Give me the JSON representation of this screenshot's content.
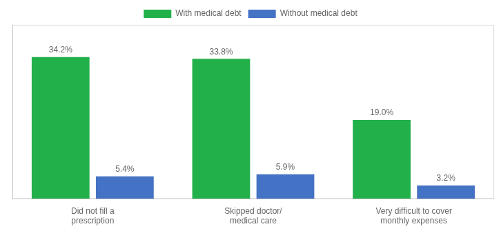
{
  "chart_data": {
    "type": "bar",
    "categories": [
      "Did not fill a\nprescription",
      "Skipped doctor/\nmedical care",
      "Very difficult to cover\nmonthly expenses"
    ],
    "series": [
      {
        "name": "With medical debt",
        "color": "#22b04b",
        "values": [
          34.2,
          33.8,
          19.0
        ],
        "value_labels": [
          "34.2%",
          "33.8%",
          "19.0%"
        ]
      },
      {
        "name": "Without medical debt",
        "color": "#4472c4",
        "values": [
          5.4,
          5.9,
          3.2
        ],
        "value_labels": [
          "5.4%",
          "5.9%",
          "3.2%"
        ]
      }
    ],
    "ylim": [
      0,
      42
    ],
    "grid": false,
    "legend": "top",
    "data_labels": true,
    "tick_labels": "x"
  }
}
